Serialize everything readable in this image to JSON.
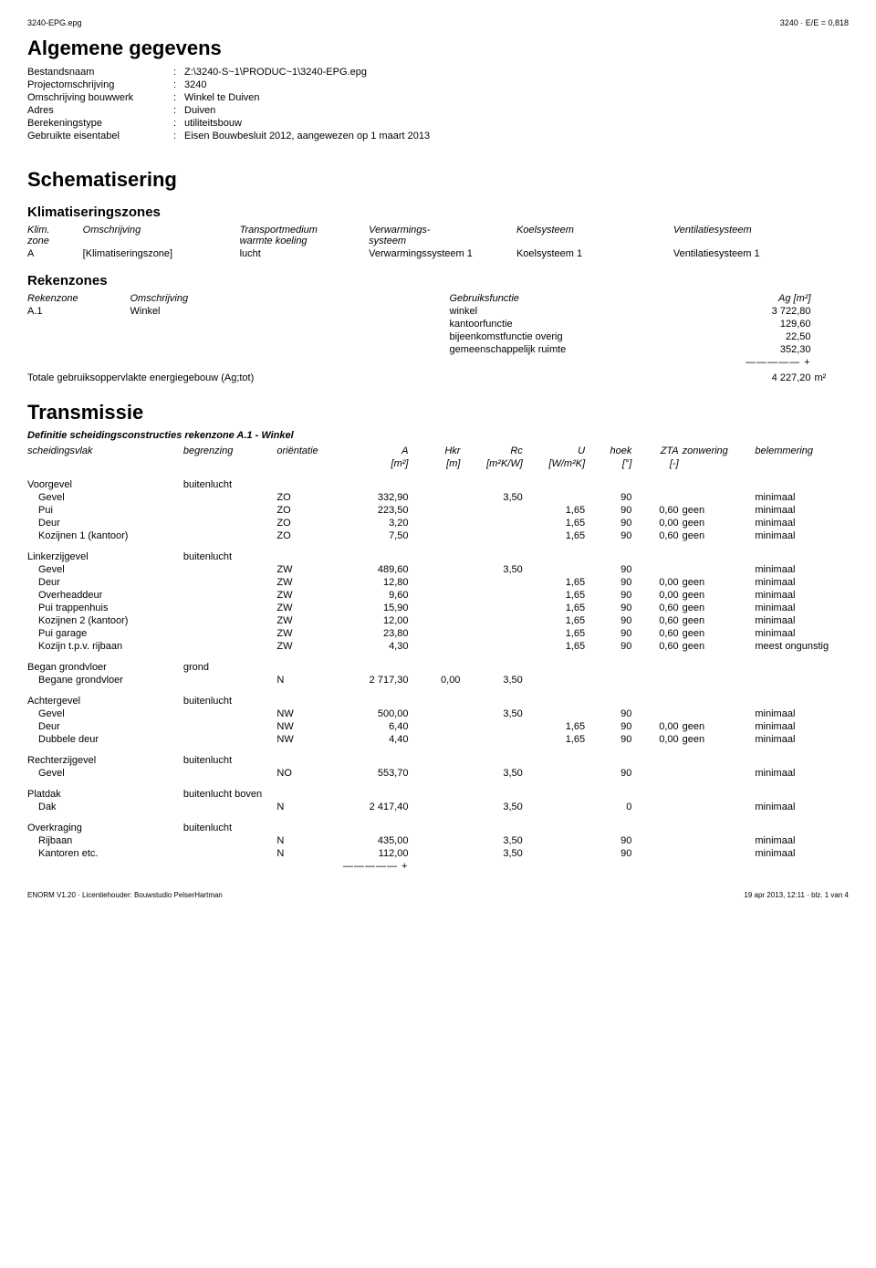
{
  "header": {
    "left": "3240-EPG.epg",
    "right": "3240 · E/E = 0,818"
  },
  "section_general": {
    "title": "Algemene gegevens",
    "rows": [
      {
        "k": "Bestandsnaam",
        "v": "Z:\\3240-S~1\\PRODUC~1\\3240-EPG.epg"
      },
      {
        "k": "Projectomschrijving",
        "v": "3240"
      },
      {
        "k": "Omschrijving bouwwerk",
        "v": "Winkel te Duiven"
      },
      {
        "k": "Adres",
        "v": "Duiven"
      },
      {
        "k": "Berekeningstype",
        "v": "utiliteitsbouw"
      },
      {
        "k": "Gebruikte eisentabel",
        "v": "Eisen Bouwbesluit 2012, aangewezen op 1 maart 2013"
      }
    ]
  },
  "section_schem": {
    "title": "Schematisering",
    "klim": {
      "title": "Klimatiseringszones",
      "head": [
        "Klim. zone",
        "Omschrijving",
        "Transportmedium warmte koeling",
        "Verwarmings- systeem",
        "Koelsysteem",
        "Ventilatiesysteem"
      ],
      "row": [
        "A",
        "[Klimatiseringszone]",
        "lucht",
        "Verwarmingssysteem 1",
        "Koelsysteem 1",
        "Ventilatiesysteem 1"
      ]
    },
    "reken": {
      "title": "Rekenzones",
      "head": [
        "Rekenzone",
        "Omschrijving",
        "Gebruiksfunctie",
        "Ag [m²]"
      ],
      "rows": [
        [
          "A.1",
          "Winkel",
          "winkel",
          "3 722,80"
        ],
        [
          "",
          "",
          "kantoorfunctie",
          "129,60"
        ],
        [
          "",
          "",
          "bijeenkomstfunctie overig",
          "22,50"
        ],
        [
          "",
          "",
          "gemeenschappelijk ruimte",
          "352,30"
        ]
      ],
      "sep": "————— +",
      "total_label": "Totale gebruiksoppervlakte energiegebouw (Ag;tot)",
      "total_val": "4 227,20",
      "total_unit": "m²"
    }
  },
  "section_trans": {
    "title": "Transmissie",
    "subtitle": "Definitie scheidingsconstructies rekenzone A.1 - Winkel",
    "head1": [
      "scheidingsvlak",
      "begrenzing",
      "oriëntatie",
      "A",
      "Hkr",
      "Rc",
      "U",
      "hoek",
      "ZTA",
      "zonwering",
      "belemmering"
    ],
    "head2": [
      "",
      "",
      "",
      "[m²]",
      "[m]",
      "[m²K/W]",
      "[W/m²K]",
      "[°]",
      "[-]",
      "",
      ""
    ],
    "groups": [
      {
        "name": "Voorgevel",
        "beg": "buitenlucht",
        "rows": [
          [
            "Gevel",
            "",
            "ZO",
            "332,90",
            "",
            "3,50",
            "",
            "90",
            "",
            "",
            "minimaal"
          ],
          [
            "Pui",
            "",
            "ZO",
            "223,50",
            "",
            "",
            "1,65",
            "90",
            "0,60",
            "geen",
            "minimaal"
          ],
          [
            "Deur",
            "",
            "ZO",
            "3,20",
            "",
            "",
            "1,65",
            "90",
            "0,00",
            "geen",
            "minimaal"
          ],
          [
            "Kozijnen 1 (kantoor)",
            "",
            "ZO",
            "7,50",
            "",
            "",
            "1,65",
            "90",
            "0,60",
            "geen",
            "minimaal"
          ]
        ]
      },
      {
        "name": "Linkerzijgevel",
        "beg": "buitenlucht",
        "rows": [
          [
            "Gevel",
            "",
            "ZW",
            "489,60",
            "",
            "3,50",
            "",
            "90",
            "",
            "",
            "minimaal"
          ],
          [
            "Deur",
            "",
            "ZW",
            "12,80",
            "",
            "",
            "1,65",
            "90",
            "0,00",
            "geen",
            "minimaal"
          ],
          [
            "Overheaddeur",
            "",
            "ZW",
            "9,60",
            "",
            "",
            "1,65",
            "90",
            "0,00",
            "geen",
            "minimaal"
          ],
          [
            "Pui trappenhuis",
            "",
            "ZW",
            "15,90",
            "",
            "",
            "1,65",
            "90",
            "0,60",
            "geen",
            "minimaal"
          ],
          [
            "Kozijnen 2 (kantoor)",
            "",
            "ZW",
            "12,00",
            "",
            "",
            "1,65",
            "90",
            "0,60",
            "geen",
            "minimaal"
          ],
          [
            "Pui garage",
            "",
            "ZW",
            "23,80",
            "",
            "",
            "1,65",
            "90",
            "0,60",
            "geen",
            "minimaal"
          ],
          [
            "Kozijn t.p.v. rijbaan",
            "",
            "ZW",
            "4,30",
            "",
            "",
            "1,65",
            "90",
            "0,60",
            "geen",
            "meest ongunstig"
          ]
        ]
      },
      {
        "name": "Began grondvloer",
        "beg": "grond",
        "rows": [
          [
            "Begane grondvloer",
            "",
            "N",
            "2 717,30",
            "0,00",
            "3,50",
            "",
            "",
            "",
            "",
            ""
          ]
        ]
      },
      {
        "name": "Achtergevel",
        "beg": "buitenlucht",
        "rows": [
          [
            "Gevel",
            "",
            "NW",
            "500,00",
            "",
            "3,50",
            "",
            "90",
            "",
            "",
            "minimaal"
          ],
          [
            "Deur",
            "",
            "NW",
            "6,40",
            "",
            "",
            "1,65",
            "90",
            "0,00",
            "geen",
            "minimaal"
          ],
          [
            "Dubbele deur",
            "",
            "NW",
            "4,40",
            "",
            "",
            "1,65",
            "90",
            "0,00",
            "geen",
            "minimaal"
          ]
        ]
      },
      {
        "name": "Rechterzijgevel",
        "beg": "buitenlucht",
        "rows": [
          [
            "Gevel",
            "",
            "NO",
            "553,70",
            "",
            "3,50",
            "",
            "90",
            "",
            "",
            "minimaal"
          ]
        ]
      },
      {
        "name": "Platdak",
        "beg": "buitenlucht boven",
        "rows": [
          [
            "Dak",
            "",
            "N",
            "2 417,40",
            "",
            "3,50",
            "",
            "0",
            "",
            "",
            "minimaal"
          ]
        ]
      },
      {
        "name": "Overkraging",
        "beg": "buitenlucht",
        "rows": [
          [
            "Rijbaan",
            "",
            "N",
            "435,00",
            "",
            "3,50",
            "",
            "90",
            "",
            "",
            "minimaal"
          ],
          [
            "Kantoren etc.",
            "",
            "N",
            "112,00",
            "",
            "3,50",
            "",
            "90",
            "",
            "",
            "minimaal"
          ]
        ]
      }
    ],
    "endsep": "————— +"
  },
  "footer": {
    "left": "ENORM V1.20 · Licentiehouder: Bouwstudio PelserHartman",
    "right": "19 apr 2013, 12:11 · blz. 1 van 4"
  },
  "colwidths_trans": [
    "150",
    "90",
    "60",
    "70",
    "50",
    "60",
    "60",
    "45",
    "45",
    "70",
    "90"
  ]
}
